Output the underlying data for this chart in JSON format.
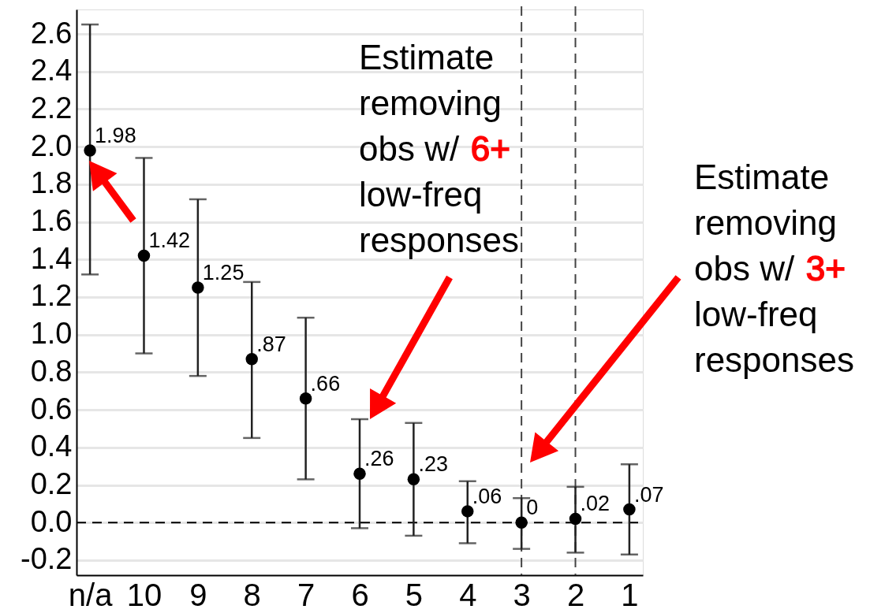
{
  "chart_data": {
    "type": "scatter",
    "categories": [
      "n/a",
      "10",
      "9",
      "8",
      "7",
      "6",
      "5",
      "4",
      "3",
      "2",
      "1"
    ],
    "values": [
      1.98,
      1.42,
      1.25,
      0.87,
      0.66,
      0.26,
      0.23,
      0.06,
      0,
      0.02,
      0.07
    ],
    "value_labels": [
      "1.98",
      "1.42",
      "1.25",
      ".87",
      ".66",
      ".26",
      ".23",
      ".06",
      "0",
      ".02",
      ".07"
    ],
    "errors": [
      [
        1.32,
        2.65
      ],
      [
        0.9,
        1.94
      ],
      [
        0.78,
        1.72
      ],
      [
        0.45,
        1.28
      ],
      [
        0.23,
        1.09
      ],
      [
        -0.03,
        0.55
      ],
      [
        -0.07,
        0.53
      ],
      [
        -0.11,
        0.22
      ],
      [
        -0.14,
        0.13
      ],
      [
        -0.16,
        0.19
      ],
      [
        -0.17,
        0.31
      ]
    ],
    "color": "#000000",
    "marker": "circle",
    "grid": "y",
    "legend": false,
    "ylim": [
      -0.28,
      2.73
    ],
    "yticks": [
      {
        "value": -0.2,
        "label": "-0.2"
      },
      {
        "value": 0,
        "label": "0.0"
      },
      0.2,
      0.4,
      0.6,
      0.8,
      {
        "value": 1,
        "label": "1.0"
      },
      1.2,
      1.4,
      1.6,
      1.8,
      {
        "value": 2,
        "label": "2.0"
      },
      2.2,
      2.4,
      2.6
    ],
    "ref_lines": [
      {
        "axis": "y",
        "value": 0,
        "line_style": "dashed",
        "color": "#000000"
      },
      {
        "axis": "x",
        "value": "3",
        "line_style": "dashed",
        "color": "#444444"
      },
      {
        "axis": "x",
        "value": "2",
        "line_style": "dashed",
        "color": "#444444"
      }
    ],
    "annotations": [
      "Estimate removing obs w/ 6+ low-freq responses",
      "Estimate removing obs w/ 3+ low-freq responses"
    ]
  }
}
